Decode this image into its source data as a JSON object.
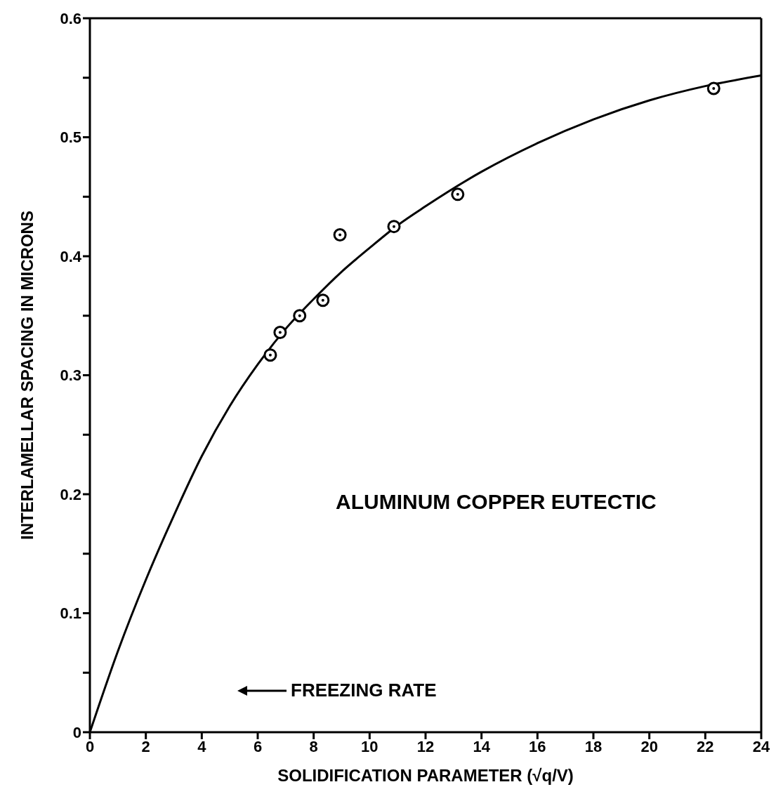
{
  "chart_data": {
    "type": "scatter",
    "xlabel": "SOLIDIFICATION PARAMETER (√q/V)",
    "ylabel": "INTERLAMELLAR  SPACING IN MICRONS",
    "annotations": [
      "ALUMINUM COPPER EUTECTIC",
      "FREEZING RATE"
    ],
    "xlim": [
      0,
      24
    ],
    "xticks": [
      0,
      2,
      4,
      6,
      8,
      10,
      12,
      14,
      16,
      18,
      20,
      22,
      24
    ],
    "ylim": [
      0,
      0.6
    ],
    "yticks": [
      0,
      {
        "value": 0.05,
        "label": null
      },
      0.1,
      {
        "value": 0.15,
        "label": null
      },
      0.2,
      {
        "value": 0.25,
        "label": null
      },
      0.3,
      {
        "value": 0.35,
        "label": null
      },
      0.4,
      {
        "value": 0.45,
        "label": null
      },
      0.5,
      {
        "value": 0.55,
        "label": null
      },
      0.6
    ],
    "grid": false,
    "series": [
      {
        "type": "line",
        "color": "#000000",
        "marker": "none",
        "line_style": "solid",
        "x": [
          0,
          1,
          2,
          3,
          4,
          5,
          6,
          7,
          8,
          9,
          10,
          11,
          12,
          14,
          16,
          18,
          20,
          22,
          24
        ],
        "values": [
          0,
          0.068,
          0.128,
          0.182,
          0.232,
          0.274,
          0.309,
          0.339,
          0.364,
          0.387,
          0.407,
          0.426,
          0.442,
          0.471,
          0.495,
          0.515,
          0.531,
          0.543,
          0.552
        ]
      },
      {
        "color": "#000000",
        "marker": "circle",
        "x": [
          6.45,
          6.8,
          7.5,
          8.33,
          8.94,
          10.87,
          13.15,
          22.3
        ],
        "values": [
          0.317,
          0.336,
          0.35,
          0.363,
          0.418,
          0.425,
          0.452,
          0.541
        ]
      }
    ]
  }
}
